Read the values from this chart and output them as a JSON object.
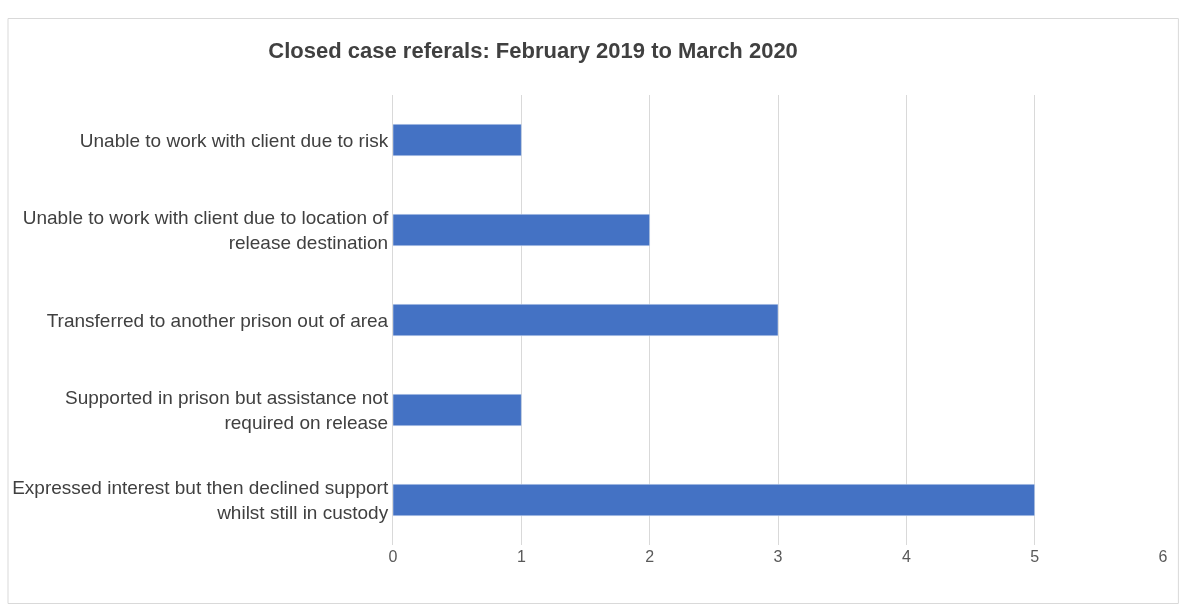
{
  "chart_data": {
    "type": "bar",
    "orientation": "horizontal",
    "title": "Closed case referals: February 2019 to March 2020",
    "categories": [
      "Unable to work with client due to risk",
      "Unable to work with client due to location of release destination",
      "Transferred to another prison out of area",
      "Supported in prison but assistance not required on release",
      "Expressed interest but then declined support whilst still in custody"
    ],
    "values": [
      1,
      2,
      3,
      1,
      5
    ],
    "color": "#4472c4",
    "xlim": [
      0,
      6
    ],
    "xticks": [
      0,
      1,
      2,
      3,
      4,
      5,
      6
    ],
    "grid": "x"
  }
}
